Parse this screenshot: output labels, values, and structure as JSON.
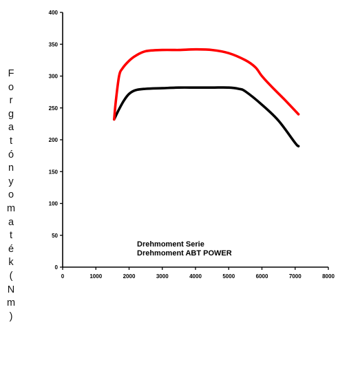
{
  "chart_data": {
    "type": "line",
    "title": "",
    "xlabel": "",
    "ylabel": "Forgatónyomaték(Nm)",
    "xlim": [
      0,
      8000
    ],
    "ylim": [
      0,
      400
    ],
    "xticks": [
      0,
      1000,
      2000,
      3000,
      4000,
      5000,
      6000,
      7000,
      8000
    ],
    "yticks": [
      0,
      50,
      100,
      150,
      200,
      250,
      300,
      350,
      400
    ],
    "grid": false,
    "legend_position": "bottom-center",
    "series": [
      {
        "name": "Drehmoment Serie",
        "color": "#000000",
        "x": [
          1550,
          1700,
          1850,
          2000,
          2200,
          2500,
          3000,
          3500,
          4000,
          4500,
          5000,
          5300,
          5500,
          6000,
          6500,
          7000,
          7100
        ],
        "y": [
          232,
          248,
          262,
          272,
          278,
          280,
          281,
          282,
          282,
          282,
          282,
          280,
          276,
          255,
          230,
          195,
          190
        ]
      },
      {
        "name": "Drehmoment ABT POWER",
        "color": "#ff0000",
        "x": [
          1550,
          1600,
          1700,
          1800,
          2000,
          2200,
          2500,
          3000,
          3500,
          4000,
          4500,
          5000,
          5500,
          5800,
          6000,
          6300,
          6700,
          7100
        ],
        "y": [
          232,
          260,
          300,
          312,
          324,
          332,
          339,
          341,
          341,
          342,
          341,
          336,
          325,
          314,
          300,
          283,
          262,
          240
        ]
      }
    ]
  }
}
